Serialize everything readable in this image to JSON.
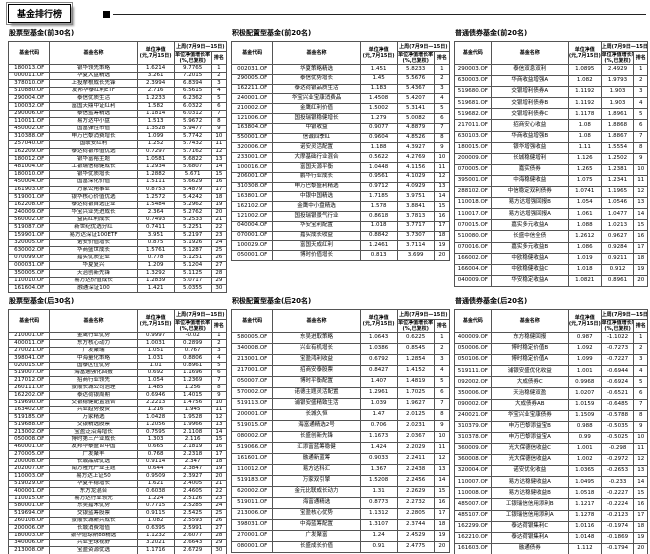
{
  "page_title": "基金排行榜",
  "colors": {
    "background": "#ffffff",
    "text": "#000000",
    "table_border": "#555555"
  },
  "header": {
    "col_code": "基金代码",
    "col_name": "基金名称",
    "col_nav_line1": "单位净值",
    "col_nav_line2": "(元,7月15日)",
    "col_week": "上周(7月9日—15日)",
    "col_growth_line1": "单位净值增长率",
    "col_growth_line2": "(%,已复权)",
    "col_rank": "排名"
  },
  "sections": [
    {
      "id": "stock-top",
      "title": "股票型基金(前30名)",
      "rows": [
        [
          "180013.OF",
          "银华领先策略",
          "1.6214",
          "9.7765",
          "1"
        ],
        [
          "000011.OF",
          "华夏大盘精选",
          "3.261",
          "7.2015",
          "2"
        ],
        [
          "378010.OF",
          "上投摩根成长先锋",
          "2.3994",
          "6.8394",
          "3"
        ],
        [
          "510880.OF",
          "友邦华泰红利ETF",
          "2.716",
          "6.5615",
          "4"
        ],
        [
          "290004.OF",
          "泰信优质生活",
          "1.2233",
          "6.2362",
          "5"
        ],
        [
          "100032.OF",
          "富国天鼎中证红利",
          "1.582",
          "6.0322",
          "6"
        ],
        [
          "290006.OF",
          "泰信蓝筹精选",
          "1.1814",
          "6.0312",
          "7"
        ],
        [
          "110011.OF",
          "易方达中小盘",
          "1.513",
          "5.9672",
          "8"
        ],
        [
          "450002.OF",
          "国富弹性市值",
          "1.3528",
          "5.9477",
          "9"
        ],
        [
          "310388.OF",
          "申万巴黎消费增长",
          "1.099",
          "5.7742",
          "10"
        ],
        [
          "257040.OF",
          "国联安红利",
          "1.252",
          "5.7432",
          "11"
        ],
        [
          "162209.OF",
          "泰达荷银市值优选",
          "0.7297",
          "5.7162",
          "12"
        ],
        [
          "180012.OF",
          "银华富裕主题",
          "1.0581",
          "5.6822",
          "13"
        ],
        [
          "481004.OF",
          "工银瑞信稳健成长",
          "1.2934",
          "5.6807",
          "14"
        ],
        [
          "180010.OF",
          "银华优质增长",
          "1.2882",
          "5.671",
          "15"
        ],
        [
          "450004.OF",
          "国富深化价值",
          "1.5111",
          "5.6629",
          "16"
        ],
        [
          "161903.OF",
          "万家公用事业",
          "0.8753",
          "5.4879",
          "17"
        ],
        [
          "519001.OF",
          "银华核心价值优选",
          "1.2572",
          "5.4242",
          "18"
        ],
        [
          "162208.OF",
          "泰达荷银首选企业",
          "1.5484",
          "5.2962",
          "19"
        ],
        [
          "240009.OF",
          "华宝兴业先进成长",
          "2.364",
          "5.2762",
          "20"
        ],
        [
          "560002.OF",
          "益民红利成长",
          "0.7493",
          "5.2533",
          "21"
        ],
        [
          "519087.OF",
          "新世纪优选分红",
          "0.7411",
          "5.2251",
          "22"
        ],
        [
          "159901.OF",
          "易方达深证100ETF",
          "3.951",
          "5.2197",
          "23"
        ],
        [
          "320005.OF",
          "诺安价值增长",
          "0.875",
          "5.1926",
          "24"
        ],
        [
          "630002.OF",
          "华商盛世成长",
          "1.5761",
          "5.1287",
          "25"
        ],
        [
          "070099.OF",
          "嘉实优质企业",
          "0.778",
          "5.1251",
          "26"
        ],
        [
          "000031.OF",
          "华夏复兴",
          "1.209",
          "5.1204",
          "27"
        ],
        [
          "350005.OF",
          "天治创新先锋",
          "1.3292",
          "5.1125",
          "28"
        ],
        [
          "110010.OF",
          "易方达价值成长",
          "1.2839",
          "5.0717",
          "29"
        ],
        [
          "161604.OF",
          "融通深证100",
          "1.421",
          "5.0355",
          "30"
        ]
      ]
    },
    {
      "id": "allocation-top",
      "title": "积极配置型基金(前20名)",
      "rows": [
        [
          "002031.OF",
          "华夏策略精选",
          "1.451",
          "5.8233",
          "1"
        ],
        [
          "290005.OF",
          "泰信优势增长",
          "1.45",
          "5.5676",
          "2"
        ],
        [
          "162211.OF",
          "泰达荷银品质生活",
          "1.183",
          "5.4367",
          "3"
        ],
        [
          "240001.OF",
          "华宝兴业宝康消费品",
          "1.4508",
          "5.4207",
          "4"
        ],
        [
          "210002.OF",
          "金鹰红利价值",
          "1.5002",
          "5.3141",
          "5"
        ],
        [
          "121006.OF",
          "国投瑞银稳健增长",
          "1.279",
          "5.0082",
          "6"
        ],
        [
          "163804.OF",
          "中银收益",
          "0.9077",
          "4.8879",
          "7"
        ],
        [
          "550001.OF",
          "信诚四季红",
          "0.9604",
          "4.8526",
          "8"
        ],
        [
          "320006.OF",
          "诺安灵活配置",
          "1.188",
          "4.3927",
          "9"
        ],
        [
          "233001.OF",
          "大摩基础行业混合",
          "0.5622",
          "4.2769",
          "10"
        ],
        [
          "100016.OF",
          "富国天源平衡",
          "1.0448",
          "4.1156",
          "11"
        ],
        [
          "206001.OF",
          "鹏华行业成长",
          "0.9561",
          "4.1029",
          "12"
        ],
        [
          "310308.OF",
          "申万巴黎盛利精选",
          "0.9712",
          "4.0929",
          "13"
        ],
        [
          "163801.OF",
          "中银中国精选",
          "1.7185",
          "3.9751",
          "14"
        ],
        [
          "162102.OF",
          "金鹰中小盘精选",
          "1.578",
          "3.8841",
          "15"
        ],
        [
          "121002.OF",
          "国投瑞银景气行业",
          "0.8618",
          "3.7813",
          "16"
        ],
        [
          "040004.OF",
          "华安宝利配置",
          "1.018",
          "3.7717",
          "17"
        ],
        [
          "070001.OF",
          "嘉实成长收益",
          "0.8842",
          "3.7307",
          "18"
        ],
        [
          "100029.OF",
          "富国天成红利",
          "1.2461",
          "3.7114",
          "19"
        ],
        [
          "050001.OF",
          "博时价值增长",
          "0.813",
          "3.699",
          "20"
        ]
      ]
    },
    {
      "id": "bond-top",
      "title": "普通债券基金(前20名)",
      "rows": [
        [
          "290003.OF",
          "泰信双息双利",
          "1.0895",
          "2.4929",
          "1"
        ],
        [
          "630003.OF",
          "华商收益增强A",
          "1.082",
          "1.9793",
          "2"
        ],
        [
          "519680.OF",
          "交银增利债券A",
          "1.1192",
          "1.903",
          "3"
        ],
        [
          "519681.OF",
          "交银增利债券B",
          "1.1192",
          "1.903",
          "4"
        ],
        [
          "519682.OF",
          "交银增利债券C",
          "1.1178",
          "1.8961",
          "5"
        ],
        [
          "217011.OF",
          "招商安心收益",
          "1.08",
          "1.8868",
          "6"
        ],
        [
          "630103.OF",
          "华商收益增强B",
          "1.08",
          "1.8867",
          "7"
        ],
        [
          "180015.OF",
          "银华增强收益",
          "1.11",
          "1.5554",
          "8"
        ],
        [
          "200009.OF",
          "长城稳健增利",
          "1.126",
          "1.2502",
          "9"
        ],
        [
          "070005.OF",
          "嘉实债券",
          "1.265",
          "1.2381",
          "10"
        ],
        [
          "395001.OF",
          "中海稳健收益",
          "1.075",
          "1.2341",
          "11"
        ],
        [
          "288102.OF",
          "中信稳定双利债券",
          "1.0741",
          "1.1965",
          "12"
        ],
        [
          "110018.OF",
          "易方达增强回报B",
          "1.054",
          "1.0546",
          "13"
        ],
        [
          "110017.OF",
          "易方达增强回报A",
          "1.061",
          "1.0477",
          "14"
        ],
        [
          "070015.OF",
          "嘉实多元收益A",
          "1.088",
          "1.0213",
          "15"
        ],
        [
          "510080.OF",
          "长盛中信全债",
          "1.2612",
          "0.9627",
          "16"
        ],
        [
          "070016.OF",
          "嘉实多元收益B",
          "1.086",
          "0.9284",
          "17"
        ],
        [
          "166002.OF",
          "中欧稳健收益A",
          "1.019",
          "0.9211",
          "18"
        ],
        [
          "166004.OF",
          "中欧稳健收益C",
          "1.018",
          "0.912",
          "19"
        ],
        [
          "040009.OF",
          "华安稳定收益A",
          "1.0821",
          "0.8961",
          "20"
        ]
      ]
    },
    {
      "id": "stock-bottom",
      "title": "股票型基金(后30名)",
      "rows": [
        [
          "210001.OF",
          "金鹰行业优势",
          "0.9997",
          "-0.02",
          "1"
        ],
        [
          "400011.OF",
          "东方核心动力",
          "1.0031",
          "0.2899",
          "2"
        ],
        [
          "270021.OF",
          "广发聚瑞",
          "1.051",
          "0.767",
          "3"
        ],
        [
          "398041.OF",
          "中海量化策略",
          "1.031",
          "0.8806",
          "4"
        ],
        [
          "020015.OF",
          "国泰区位优势",
          "1.01",
          "0.8961",
          "5"
        ],
        [
          "519007.OF",
          "海富通强化回报",
          "0.692",
          "1.1696",
          "6"
        ],
        [
          "217012.OF",
          "招商行业领先",
          "1.054",
          "1.2369",
          "7"
        ],
        [
          "260111.OF",
          "景顺长城公司治理",
          "1.485",
          "1.256",
          "8"
        ],
        [
          "162202.OF",
          "泰达荷银周期",
          "0.6946",
          "1.4015",
          "9"
        ],
        [
          "519690.OF",
          "交银稳健配置混合",
          "2.2213",
          "1.4756",
          "10"
        ],
        [
          "163402.OF",
          "兴业趋势投资",
          "1.216",
          "1.945",
          "11"
        ],
        [
          "519185.OF",
          "万家精选",
          "1.0428",
          "1.9528",
          "12"
        ],
        [
          "519688.OF",
          "交银精选股票",
          "1.2056",
          "1.9966",
          "13"
        ],
        [
          "213002.OF",
          "宝盈泛沿海增长",
          "0.7595",
          "2.1108",
          "14"
        ],
        [
          "050008.OF",
          "博时第三产业成长",
          "1.303",
          "2.116",
          "15"
        ],
        [
          "460001.OF",
          "友邦华泰盛世中国",
          "0.665",
          "2.1819",
          "16"
        ],
        [
          "270005.OF",
          "广发聚丰",
          "0.768",
          "2.2318",
          "17"
        ],
        [
          "200008.OF",
          "长城品牌优选",
          "0.9114",
          "2.347",
          "18"
        ],
        [
          "202007.OF",
          "南方隆元产业主题",
          "0.644",
          "2.3847",
          "19"
        ],
        [
          "110003.OF",
          "易方达上证50",
          "0.9509",
          "2.3927",
          "20"
        ],
        [
          "519029.OF",
          "华夏平稳增长",
          "1.621",
          "2.4005",
          "21"
        ],
        [
          "400001.OF",
          "东方龙混合",
          "0.6038",
          "2.4605",
          "22"
        ],
        [
          "110015.OF",
          "易方达行业领先",
          "1.224",
          "2.5126",
          "23"
        ],
        [
          "580001.OF",
          "东吴嘉禾优势",
          "0.7715",
          "2.5285",
          "24"
        ],
        [
          "519694.OF",
          "交银蓝筹股票",
          "0.9115",
          "2.5425",
          "25"
        ],
        [
          "260108.OF",
          "景顺长城新兴成长",
          "1.082",
          "2.5593",
          "26"
        ],
        [
          "200006.OF",
          "长城消费增值",
          "0.6395",
          "2.5991",
          "27"
        ],
        [
          "180003.OF",
          "银华道琼斯88精选",
          "1.1232",
          "2.6077",
          "28"
        ],
        [
          "340006.OF",
          "兴业全球视野",
          "3.2021",
          "2.6643",
          "29"
        ],
        [
          "213008.OF",
          "宝盈资源优选",
          "1.1716",
          "2.6729",
          "30"
        ]
      ]
    },
    {
      "id": "allocation-bottom",
      "title": "积极配置型基金(后20名)",
      "rows": [
        [
          "580005.OF",
          "东吴进取策略",
          "1.0643",
          "0.6225",
          "1"
        ],
        [
          "340008.OF",
          "兴业有机增长",
          "1.0386",
          "0.8545",
          "2"
        ],
        [
          "213001.OF",
          "宝盈鸿利收益",
          "0.6792",
          "1.2854",
          "3"
        ],
        [
          "217001.OF",
          "招商安泰股票",
          "0.8427",
          "1.4152",
          "4"
        ],
        [
          "050007.OF",
          "博时平衡配置",
          "1.407",
          "1.4819",
          "5"
        ],
        [
          "570002.OF",
          "诺德主题灵活配置",
          "1.2961",
          "1.7025",
          "6"
        ],
        [
          "519113.OF",
          "浦银安盛精致生活",
          "1.039",
          "1.9627",
          "7"
        ],
        [
          "200001.OF",
          "长城久恒",
          "1.47",
          "2.0125",
          "8"
        ],
        [
          "519015.OF",
          "海富通精选2号",
          "0.706",
          "2.0231",
          "9"
        ],
        [
          "080002.OF",
          "长盛创新先锋",
          "1.1673",
          "2.0367",
          "10"
        ],
        [
          "519066.OF",
          "汇添富蓝筹稳健",
          "1.424",
          "2.2029",
          "11"
        ],
        [
          "161601.OF",
          "融通新蓝筹",
          "0.9033",
          "2.2411",
          "12"
        ],
        [
          "110012.OF",
          "易方达科汇",
          "1.367",
          "2.2438",
          "13"
        ],
        [
          "519183.OF",
          "万家双引擎",
          "1.5208",
          "2.2456",
          "14"
        ],
        [
          "620002.OF",
          "金元比联成长动力",
          "1.31",
          "2.2629",
          "15"
        ],
        [
          "519011.OF",
          "海富通精选",
          "0.8773",
          "2.2732",
          "16"
        ],
        [
          "213006.OF",
          "宝盈核心优势",
          "1.1312",
          "2.2805",
          "17"
        ],
        [
          "398031.OF",
          "中海蓝筹配置",
          "1.3107",
          "2.3744",
          "18"
        ],
        [
          "270001.OF",
          "广发聚富",
          "1.24",
          "2.4529",
          "19"
        ],
        [
          "080001.OF",
          "长盛成长价值",
          "0.91",
          "2.4775",
          "20"
        ]
      ]
    },
    {
      "id": "bond-bottom",
      "title": "普通债券基金(后20名)",
      "rows": [
        [
          "400009.OF",
          "东方稳健回报",
          "0.987",
          "-1.1022",
          "1"
        ],
        [
          "050006.OF",
          "博时稳定价值B",
          "1.092",
          "-0.7273",
          "2"
        ],
        [
          "050106.OF",
          "博时稳定价值A",
          "1.099",
          "-0.7227",
          "3"
        ],
        [
          "519111.OF",
          "浦银安盛优化收益",
          "1.001",
          "-0.6944",
          "4"
        ],
        [
          "092002.OF",
          "大成债券C",
          "0.9968",
          "-0.6924",
          "5"
        ],
        [
          "350006.OF",
          "天治稳健双盈",
          "1.0207",
          "-0.6521",
          "6"
        ],
        [
          "090002.OF",
          "大成债券AB",
          "1.0159",
          "-0.6485",
          "7"
        ],
        [
          "240021.OF",
          "华宝兴业宝康债券",
          "1.1509",
          "-0.5788",
          "8"
        ],
        [
          "310379.OF",
          "申万巴黎添益宝B",
          "0.988",
          "-0.5035",
          "9"
        ],
        [
          "310378.OF",
          "申万巴黎添益宝A",
          "0.99",
          "-0.5025",
          "10"
        ],
        [
          "360009.OF",
          "光大保德信收益C",
          "1.001",
          "-0.298",
          "11"
        ],
        [
          "360008.OF",
          "光大保德信收益A",
          "1.002",
          "-0.2972",
          "12"
        ],
        [
          "320004.OF",
          "诺安优化收益",
          "1.0365",
          "-0.2653",
          "13"
        ],
        [
          "110007.OF",
          "易方达稳健收益A",
          "1.0495",
          "-0.233",
          "14"
        ],
        [
          "110008.OF",
          "易方达稳健收益B",
          "1.0518",
          "-0.2227",
          "15"
        ],
        [
          "485007.OF",
          "工银瑞信信用添利B",
          "1.1217",
          "-0.2224",
          "16"
        ],
        [
          "485107.OF",
          "工银瑞信信用添利A",
          "1.1278",
          "-0.2123",
          "17"
        ],
        [
          "162299.OF",
          "泰达荷银集利C",
          "1.0116",
          "-0.1974",
          "18"
        ],
        [
          "162210.OF",
          "泰达荷银集利A",
          "1.0148",
          "-0.1869",
          "19"
        ],
        [
          "161603.OF",
          "融通债券",
          "1.112",
          "-0.1794",
          "20"
        ]
      ]
    }
  ]
}
